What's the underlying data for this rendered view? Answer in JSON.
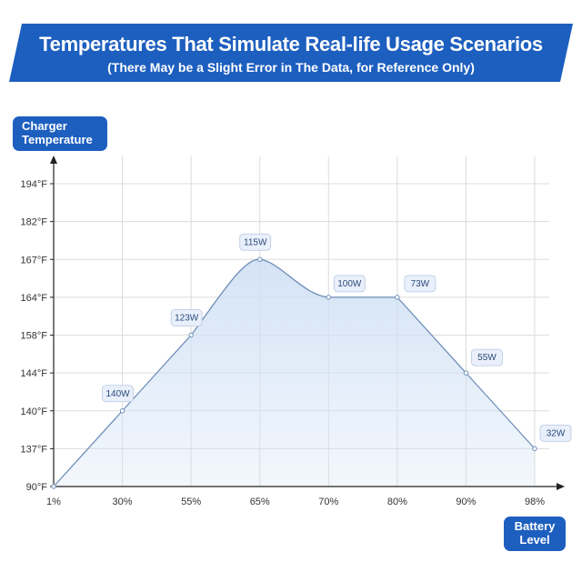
{
  "header": {
    "title": "Temperatures That Simulate Real-life Usage Scenarios",
    "subtitle": "(There May be a Slight Error in The Data, for Reference Only)"
  },
  "axis_tags": {
    "y_line1": "Charger",
    "y_line2": "Temperature",
    "x_line1": "Battery",
    "x_line2": "Level"
  },
  "colors": {
    "banner": "#1d5fbf",
    "line": "#6f8fb8",
    "fill": "#cfe0f5",
    "grid": "#dcdcdc"
  },
  "chart_data": {
    "type": "area",
    "title": "Temperatures That Simulate Real-life Usage Scenarios",
    "subtitle": "(There May be a Slight Error in The Data, for Reference Only)",
    "xlabel": "Battery Level",
    "ylabel": "Charger Temperature",
    "categories": [
      "1%",
      "30%",
      "55%",
      "65%",
      "70%",
      "80%",
      "90%",
      "98%"
    ],
    "y_ticks": [
      "90°F",
      "137°F",
      "140°F",
      "144°F",
      "158°F",
      "164°F",
      "167°F",
      "182°F",
      "194°F"
    ],
    "values": [
      90,
      140,
      158,
      167,
      164,
      164,
      144,
      137
    ],
    "point_labels": [
      "",
      "140W",
      "123W",
      "115W",
      "100W",
      "73W",
      "55W",
      "32W"
    ],
    "grid": true
  }
}
